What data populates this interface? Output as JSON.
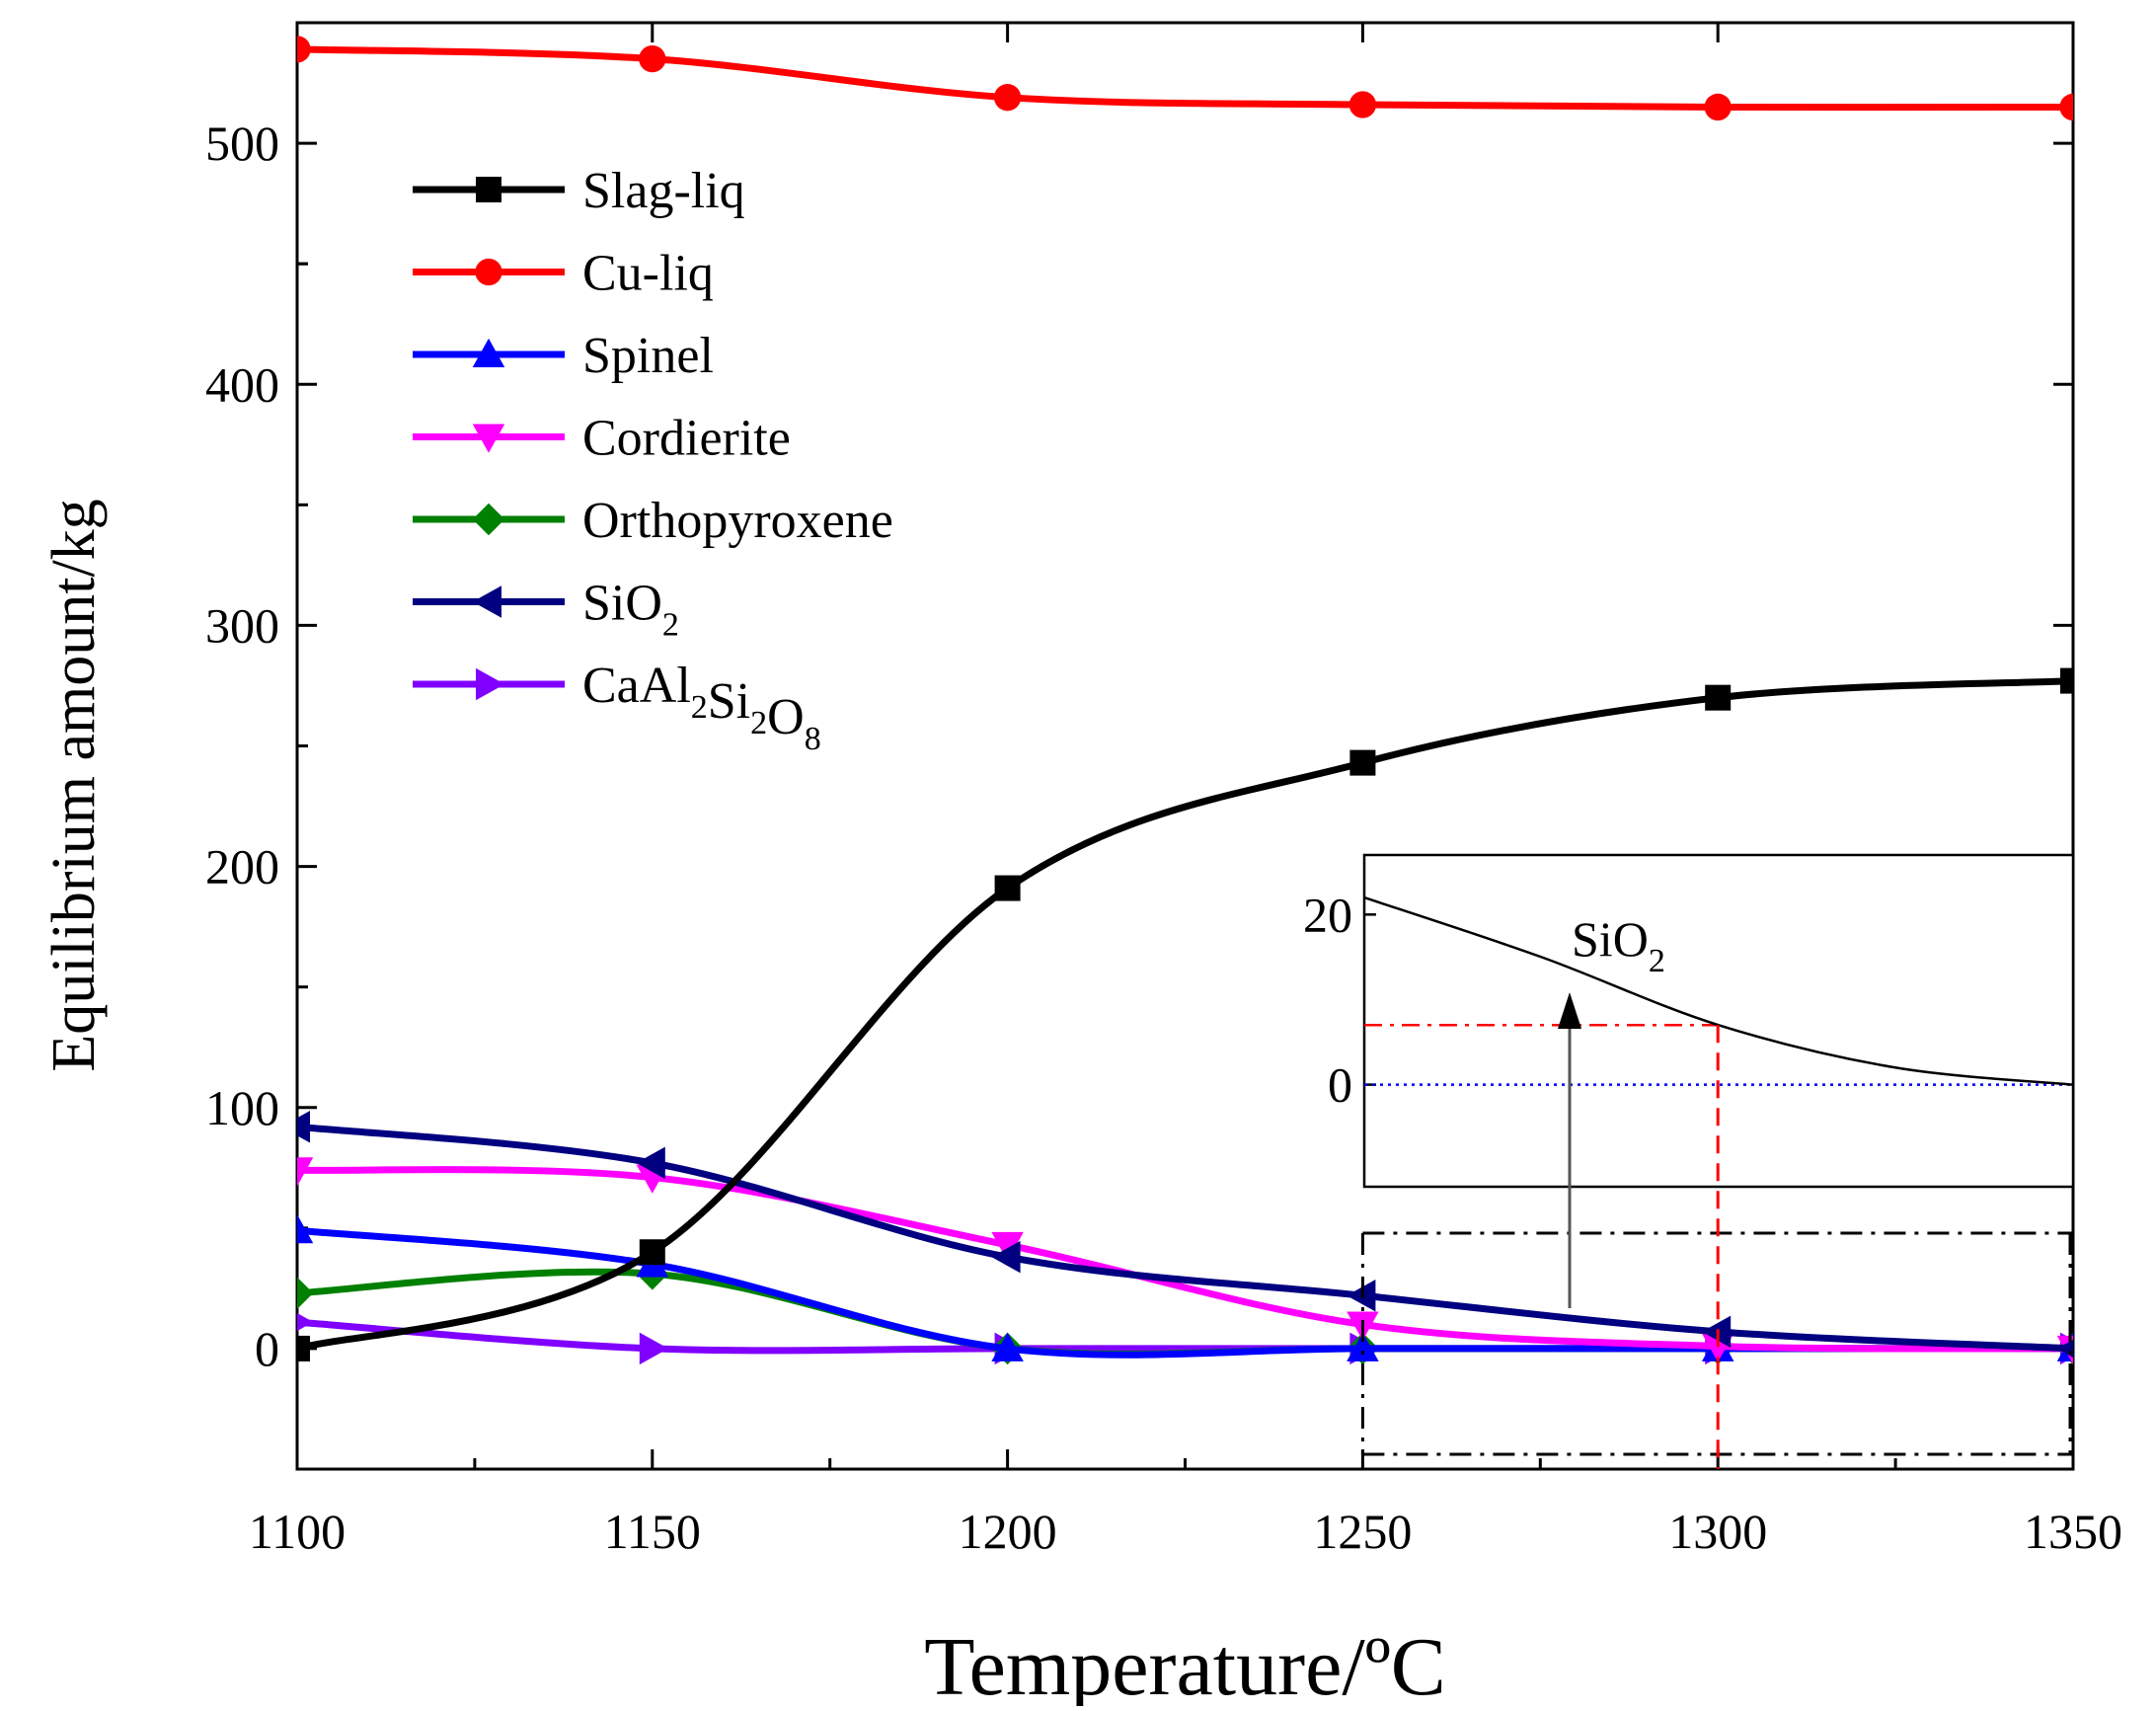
{
  "chart_data": {
    "type": "line",
    "title": "",
    "xlabel": "Temperature/ºC",
    "ylabel": "Equilibrium amount/kg",
    "xlim": [
      1100,
      1350
    ],
    "ylim": [
      -50,
      550
    ],
    "xticks": [
      1100,
      1150,
      1200,
      1250,
      1300,
      1350
    ],
    "yticks": [
      0,
      100,
      200,
      300,
      400,
      500
    ],
    "legend_position": "top-left",
    "series": [
      {
        "name": "Slag-liq",
        "base": "Slag-liq",
        "sub": "",
        "color": "#000000",
        "marker": "square",
        "x": [
          1100,
          1150,
          1200,
          1250,
          1300,
          1350
        ],
        "values": [
          0,
          40,
          191,
          243,
          270,
          277
        ]
      },
      {
        "name": "Cu-liq",
        "base": "Cu-liq",
        "sub": "",
        "color": "#ff0000",
        "marker": "circle",
        "x": [
          1100,
          1150,
          1200,
          1250,
          1300,
          1350
        ],
        "values": [
          539,
          535,
          519,
          516,
          515,
          515
        ]
      },
      {
        "name": "Spinel",
        "base": "Spinel",
        "sub": "",
        "color": "#0000ff",
        "marker": "triangle-up",
        "x": [
          1100,
          1150,
          1200,
          1250,
          1300,
          1350
        ],
        "values": [
          49,
          35,
          0,
          0,
          0,
          0
        ]
      },
      {
        "name": "Cordierite",
        "base": "Cordierite",
        "sub": "",
        "color": "#ff00ff",
        "marker": "triangle-down",
        "x": [
          1100,
          1150,
          1200,
          1250,
          1300,
          1350
        ],
        "values": [
          74,
          71,
          43,
          10,
          1,
          0
        ]
      },
      {
        "name": "Orthopyroxene",
        "base": "Orthopyroxene",
        "sub": "",
        "color": "#008000",
        "marker": "diamond",
        "x": [
          1100,
          1150,
          1200,
          1250,
          1300,
          1350
        ],
        "values": [
          23,
          31,
          0,
          0,
          0,
          0
        ]
      },
      {
        "name": "SiO2",
        "base": "SiO",
        "sub": "2",
        "color": "#000080",
        "marker": "triangle-left",
        "x": [
          1100,
          1150,
          1200,
          1250,
          1300,
          1350
        ],
        "values": [
          92,
          77,
          38,
          22,
          7,
          0
        ]
      },
      {
        "name": "CaAl2Si2O8",
        "base": "CaAl",
        "sub": "2",
        "base2": "Si",
        "sub2": "2",
        "base3": "O",
        "sub3": "8",
        "color": "#8000ff",
        "marker": "triangle-right",
        "x": [
          1100,
          1150,
          1200,
          1250,
          1300,
          1350
        ],
        "values": [
          11,
          0,
          0,
          0,
          0,
          0
        ]
      }
    ],
    "inset": {
      "label_base": "SiO",
      "label_sub": "2",
      "xlim": [
        1250,
        1350
      ],
      "ylim": [
        -12,
        27
      ],
      "yticks": [
        0,
        20
      ],
      "series": {
        "x": [
          1250,
          1275,
          1300,
          1325,
          1350
        ],
        "values": [
          22,
          15,
          7,
          2,
          0
        ]
      },
      "marker_value": 7,
      "marker_x": 1300
    }
  }
}
